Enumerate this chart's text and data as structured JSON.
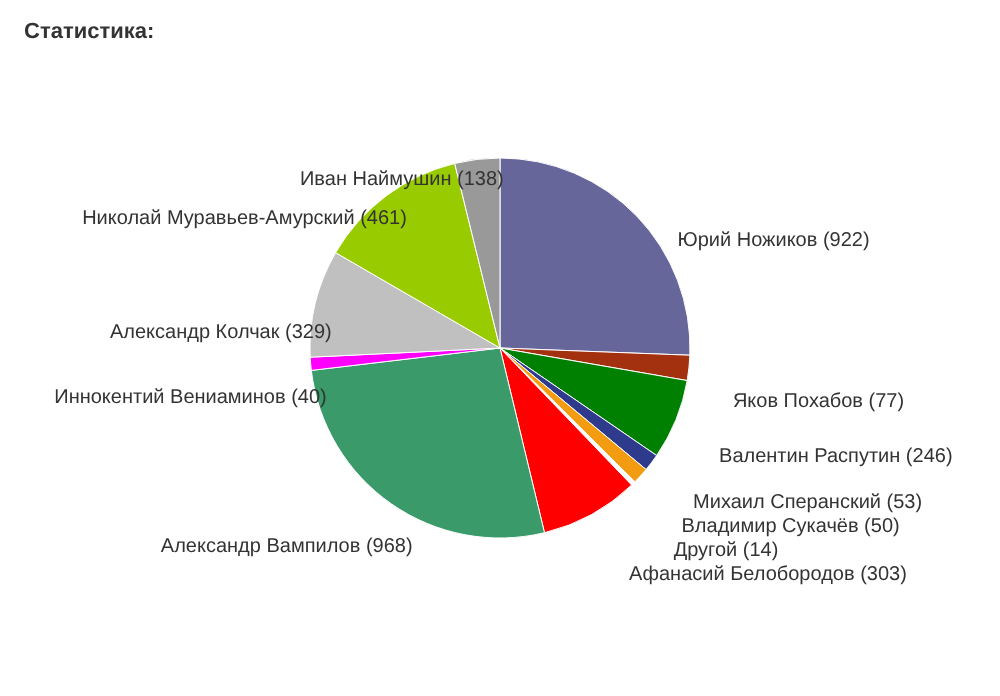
{
  "chart_data": {
    "type": "pie",
    "title": "Статистика:",
    "categories": [
      "Юрий Ножиков",
      "Яков Похабов",
      "Валентин Распутин",
      "Михаил Сперанский",
      "Владимир Сукачёв",
      "Другой",
      "Афанасий Белобородов",
      "Александр Вампилов",
      "Иннокентий Вениаминов",
      "Александр Колчак",
      "Николай Муравьев-Амурский",
      "Иван Наймушин"
    ],
    "values": [
      922,
      77,
      246,
      53,
      50,
      14,
      303,
      968,
      40,
      329,
      461,
      138
    ],
    "colors": [
      "#66669a",
      "#a3300f",
      "#008000",
      "#2e3a8c",
      "#f39c12",
      "#ffffff",
      "#ff0000",
      "#3a9a6a",
      "#ff00ff",
      "#c0c0c0",
      "#99cc00",
      "#999999"
    ],
    "value_labels": [
      "(922)",
      "(77)",
      "(246)",
      "(53)",
      "(50)",
      "(14)",
      "(303)",
      "(968)",
      "(40)",
      "(329)",
      "(461)",
      "(138)"
    ]
  }
}
